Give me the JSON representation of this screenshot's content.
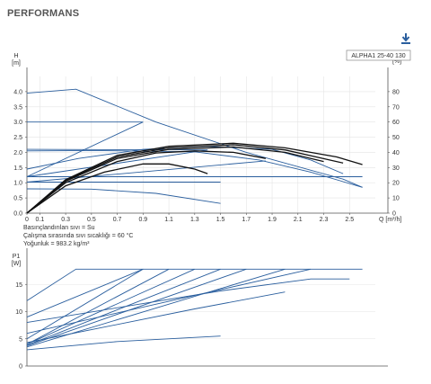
{
  "header": {
    "title": "PERFORMANS"
  },
  "icons": {
    "download": "download-icon"
  },
  "notes": [
    "Basınçlandırılan sıvı = Su",
    "Çalışma sırasında sıvı sıcaklığı = 60 °C",
    "Yoğunluk = 983.2 kg/m³"
  ],
  "colors": {
    "blue": "#2b5f9e",
    "black": "#111111",
    "grid": "#e4e4e4"
  },
  "chart_data": [
    {
      "type": "line",
      "product_label": "ALPHA1 25-40 130",
      "ylabel": "H\n[m]",
      "y2label": "eta\n[%]",
      "xlabel": "Q [m³/h]",
      "xlim": [
        0,
        2.7
      ],
      "ylim": [
        0,
        4.5
      ],
      "y2lim": [
        0,
        90
      ],
      "xticks": [
        0,
        0.1,
        0.3,
        0.5,
        0.7,
        0.9,
        1.1,
        1.3,
        1.5,
        1.7,
        1.9,
        2.1,
        2.3,
        2.5
      ],
      "yticks": [
        0,
        0.5,
        1.0,
        1.5,
        2.0,
        2.5,
        3.0,
        3.5,
        4.0
      ],
      "y2ticks": [
        0,
        10,
        20,
        30,
        40,
        50,
        60,
        70,
        80
      ],
      "grid": true,
      "series": [
        {
          "color": "blue",
          "points": [
            [
              0,
              3.95
            ],
            [
              0.38,
              4.08
            ],
            [
              1.0,
              3.0
            ],
            [
              1.7,
              2.0
            ],
            [
              2.45,
              1.12
            ],
            [
              2.6,
              0.85
            ]
          ]
        },
        {
          "color": "blue",
          "points": [
            [
              0,
              3.0
            ],
            [
              0.9,
              3.0
            ]
          ]
        },
        {
          "color": "blue",
          "points": [
            [
              0,
              1.2
            ],
            [
              0.9,
              3.0
            ]
          ]
        },
        {
          "color": "blue",
          "points": [
            [
              0,
              2.1
            ],
            [
              1.4,
              2.08
            ]
          ]
        },
        {
          "color": "blue",
          "points": [
            [
              0,
              1.2
            ],
            [
              1.4,
              2.08
            ]
          ]
        },
        {
          "color": "blue",
          "points": [
            [
              0,
              1.2
            ],
            [
              2.6,
              1.2
            ]
          ]
        },
        {
          "color": "blue",
          "points": [
            [
              0,
              1.02
            ],
            [
              1.5,
              1.02
            ]
          ]
        },
        {
          "color": "blue",
          "points": [
            [
              0,
              1.02
            ],
            [
              1.85,
              1.72
            ]
          ]
        },
        {
          "color": "blue",
          "points": [
            [
              0,
              0.8
            ],
            [
              0.5,
              0.79
            ],
            [
              1.0,
              0.65
            ],
            [
              1.5,
              0.32
            ]
          ]
        },
        {
          "color": "blue",
          "points": [
            [
              0,
              1.45
            ],
            [
              0.4,
              1.8
            ],
            [
              0.9,
              2.1
            ],
            [
              1.4,
              2.2
            ],
            [
              1.9,
              2.1
            ],
            [
              2.2,
              1.75
            ],
            [
              2.45,
              1.3
            ]
          ]
        },
        {
          "color": "blue",
          "points": [
            [
              0,
              2.05
            ],
            [
              0.5,
              2.06
            ],
            [
              1.3,
              2.02
            ],
            [
              1.8,
              1.75
            ],
            [
              2.2,
              1.35
            ],
            [
              2.6,
              0.85
            ]
          ]
        },
        {
          "color": "black",
          "points": [
            [
              0,
              0
            ],
            [
              0.3,
              1.1
            ],
            [
              0.7,
              1.9
            ],
            [
              1.1,
              2.2
            ],
            [
              1.6,
              2.3
            ],
            [
              2.0,
              2.15
            ],
            [
              2.4,
              1.85
            ],
            [
              2.6,
              1.6
            ]
          ]
        },
        {
          "color": "black",
          "points": [
            [
              0,
              0
            ],
            [
              0.3,
              1.08
            ],
            [
              0.7,
              1.85
            ],
            [
              1.1,
              2.15
            ],
            [
              1.6,
              2.25
            ],
            [
              2.0,
              2.08
            ],
            [
              2.45,
              1.65
            ]
          ]
        },
        {
          "color": "black",
          "points": [
            [
              0,
              0
            ],
            [
              0.3,
              1.05
            ],
            [
              0.7,
              1.8
            ],
            [
              1.1,
              2.1
            ],
            [
              1.6,
              2.18
            ],
            [
              2.0,
              2.0
            ],
            [
              2.3,
              1.7
            ]
          ]
        },
        {
          "color": "black",
          "points": [
            [
              0,
              0
            ],
            [
              0.3,
              1.0
            ],
            [
              0.7,
              1.7
            ],
            [
              1.0,
              1.98
            ],
            [
              1.3,
              2.05
            ],
            [
              1.6,
              2.0
            ],
            [
              1.85,
              1.8
            ]
          ]
        },
        {
          "color": "black",
          "points": [
            [
              0,
              0
            ],
            [
              0.3,
              0.9
            ],
            [
              0.6,
              1.35
            ],
            [
              0.9,
              1.62
            ],
            [
              1.1,
              1.62
            ],
            [
              1.3,
              1.45
            ],
            [
              1.4,
              1.3
            ]
          ]
        }
      ]
    },
    {
      "type": "line",
      "ylabel": "P1\n[W]",
      "xlim": [
        0,
        2.7
      ],
      "ylim": [
        0,
        20
      ],
      "yticks": [
        0,
        5,
        10,
        15
      ],
      "grid": true,
      "series": [
        {
          "color": "blue",
          "points": [
            [
              0,
              12
            ],
            [
              0.38,
              17.8
            ],
            [
              2.6,
              17.8
            ]
          ]
        },
        {
          "color": "blue",
          "points": [
            [
              0,
              9
            ],
            [
              0.9,
              17.8
            ]
          ]
        },
        {
          "color": "blue",
          "points": [
            [
              0,
              5.0
            ],
            [
              0.9,
              17.8
            ]
          ]
        },
        {
          "color": "blue",
          "points": [
            [
              0,
              4.0
            ],
            [
              1.1,
              17.8
            ]
          ]
        },
        {
          "color": "blue",
          "points": [
            [
              0,
              4.0
            ],
            [
              1.3,
              17.8
            ]
          ]
        },
        {
          "color": "blue",
          "points": [
            [
              0,
              3.8
            ],
            [
              1.5,
              17.8
            ]
          ]
        },
        {
          "color": "blue",
          "points": [
            [
              0,
              3.7
            ],
            [
              1.7,
              17.8
            ]
          ]
        },
        {
          "color": "blue",
          "points": [
            [
              0,
              3.5
            ],
            [
              2.0,
              17.8
            ]
          ]
        },
        {
          "color": "blue",
          "points": [
            [
              0,
              6.0
            ],
            [
              2.2,
              17.8
            ]
          ]
        },
        {
          "color": "blue",
          "points": [
            [
              0,
              8.0
            ],
            [
              1.5,
              13.8
            ],
            [
              2.2,
              16.0
            ],
            [
              2.5,
              16.0
            ]
          ]
        },
        {
          "color": "blue",
          "points": [
            [
              0,
              4.3
            ],
            [
              1.3,
              10.5
            ],
            [
              2.0,
              13.6
            ]
          ]
        },
        {
          "color": "blue",
          "points": [
            [
              0,
              3.0
            ],
            [
              0.7,
              4.5
            ],
            [
              1.5,
              5.5
            ]
          ]
        }
      ]
    }
  ]
}
